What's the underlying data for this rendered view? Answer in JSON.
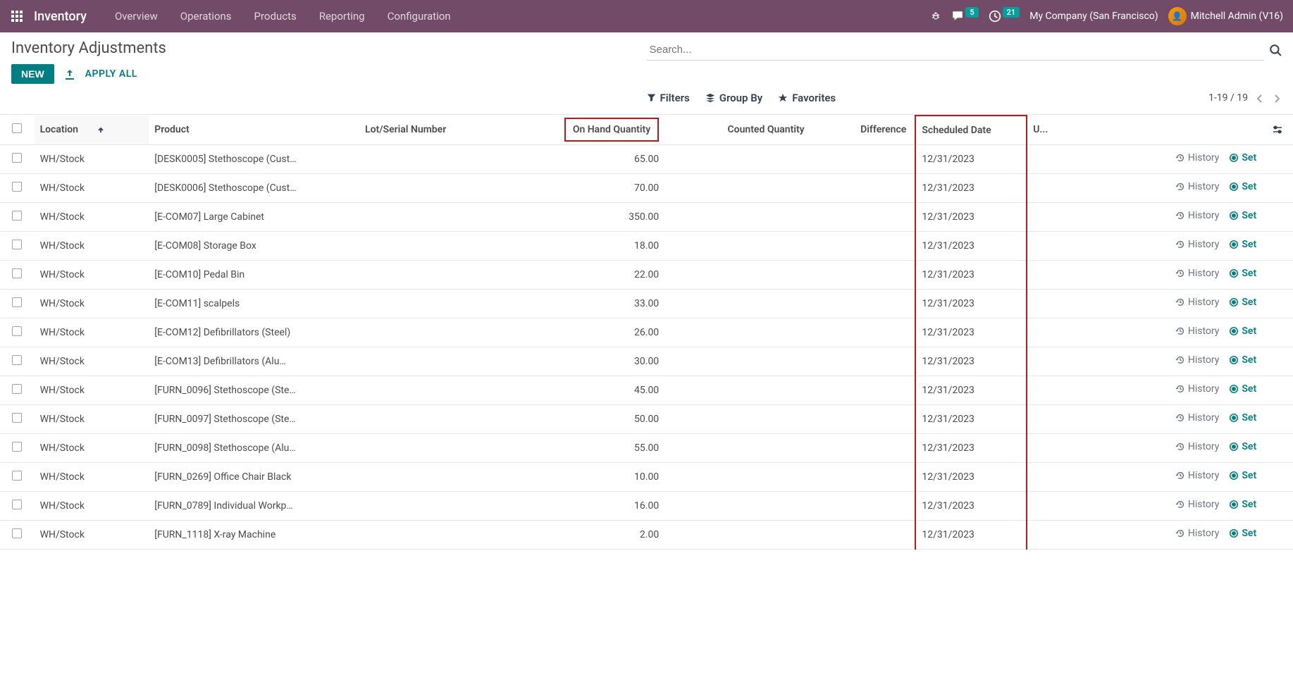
{
  "colors": {
    "navbar_bg": "#714b67",
    "primary": "#017e84",
    "badge_bg": "#00a09d",
    "highlight_border": "#bb1818",
    "text": "#374151",
    "border": "#e5e7eb"
  },
  "nav": {
    "brand": "Inventory",
    "menu": [
      "Overview",
      "Operations",
      "Products",
      "Reporting",
      "Configuration"
    ],
    "messages_badge": "5",
    "activities_badge": "21",
    "company": "My Company (San Francisco)",
    "user": "Mitchell Admin (V16)"
  },
  "page": {
    "title": "Inventory Adjustments",
    "new_btn": "NEW",
    "apply_all_btn": "APPLY ALL",
    "search_placeholder": "Search...",
    "filters_btn": "Filters",
    "groupby_btn": "Group By",
    "favorites_btn": "Favorites",
    "pager": "1-19 / 19"
  },
  "table": {
    "columns": {
      "location": "Location",
      "product": "Product",
      "lot": "Lot/Serial Number",
      "onhand": "On Hand Quantity",
      "counted": "Counted Quantity",
      "difference": "Difference",
      "scheduled": "Scheduled Date",
      "user": "U..."
    },
    "row_actions": {
      "history": "History",
      "set": "Set"
    },
    "rows": [
      {
        "location": "WH/Stock",
        "product": "[DESK0005] Stethoscope (Cust…",
        "onhand": "65.00",
        "date": "12/31/2023"
      },
      {
        "location": "WH/Stock",
        "product": "[DESK0006] Stethoscope (Cust…",
        "onhand": "70.00",
        "date": "12/31/2023"
      },
      {
        "location": "WH/Stock",
        "product": "[E-COM07] Large Cabinet",
        "onhand": "350.00",
        "date": "12/31/2023"
      },
      {
        "location": "WH/Stock",
        "product": "[E-COM08] Storage Box",
        "onhand": "18.00",
        "date": "12/31/2023"
      },
      {
        "location": "WH/Stock",
        "product": "[E-COM10] Pedal Bin",
        "onhand": "22.00",
        "date": "12/31/2023"
      },
      {
        "location": "WH/Stock",
        "product": "[E-COM11] scalpels",
        "onhand": "33.00",
        "date": "12/31/2023"
      },
      {
        "location": "WH/Stock",
        "product": "[E-COM12] Defibrillators (Steel)",
        "onhand": "26.00",
        "date": "12/31/2023"
      },
      {
        "location": "WH/Stock",
        "product": "[E-COM13] Defibrillators (Alu…",
        "onhand": "30.00",
        "date": "12/31/2023"
      },
      {
        "location": "WH/Stock",
        "product": "[FURN_0096] Stethoscope (Ste…",
        "onhand": "45.00",
        "date": "12/31/2023"
      },
      {
        "location": "WH/Stock",
        "product": "[FURN_0097] Stethoscope (Ste…",
        "onhand": "50.00",
        "date": "12/31/2023"
      },
      {
        "location": "WH/Stock",
        "product": "[FURN_0098] Stethoscope (Alu…",
        "onhand": "55.00",
        "date": "12/31/2023"
      },
      {
        "location": "WH/Stock",
        "product": "[FURN_0269] Office Chair Black",
        "onhand": "10.00",
        "date": "12/31/2023"
      },
      {
        "location": "WH/Stock",
        "product": "[FURN_0789] Individual Workp…",
        "onhand": "16.00",
        "date": "12/31/2023"
      },
      {
        "location": "WH/Stock",
        "product": "[FURN_1118] X-ray Machine",
        "onhand": "2.00",
        "date": "12/31/2023"
      }
    ]
  }
}
